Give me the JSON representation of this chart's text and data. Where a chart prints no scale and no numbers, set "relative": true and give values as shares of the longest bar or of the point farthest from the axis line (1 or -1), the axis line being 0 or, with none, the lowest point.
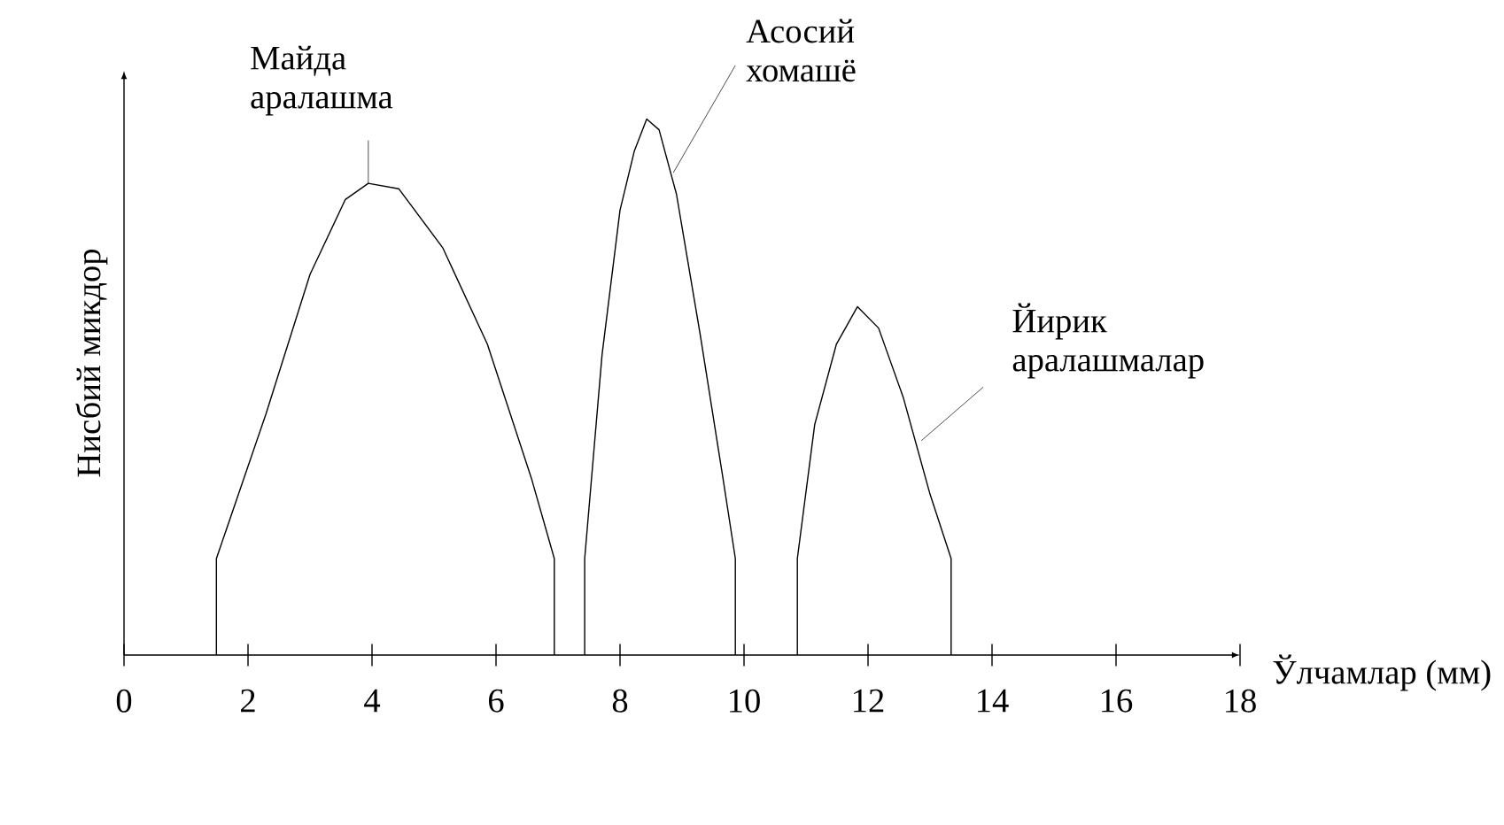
{
  "chart_data": {
    "type": "line",
    "relative": true,
    "xlabel": "Ўлчамлар (мм)",
    "ylabel": "Нисбий микдор",
    "xlim": [
      0,
      18
    ],
    "xticks": [
      0,
      2,
      4,
      6,
      8,
      10,
      12,
      14,
      16,
      18
    ],
    "grid": false,
    "marker": "none",
    "line_style": "solid",
    "series": [
      {
        "color": "#000000",
        "x": [
          1.49,
          1.49,
          2.29,
          3.0,
          3.57,
          3.94,
          4.43,
          5.14,
          5.86,
          6.57,
          6.94,
          6.94
        ],
        "values": [
          0,
          0.18,
          0.45,
          0.71,
          0.85,
          0.88,
          0.87,
          0.76,
          0.58,
          0.33,
          0.18,
          0
        ]
      },
      {
        "color": "#000000",
        "x": [
          7.43,
          7.43,
          7.71,
          8.0,
          8.23,
          8.43,
          8.63,
          8.91,
          9.29,
          9.66,
          9.86,
          9.86
        ],
        "values": [
          0,
          0.18,
          0.56,
          0.83,
          0.94,
          1,
          0.98,
          0.86,
          0.6,
          0.33,
          0.18,
          0
        ]
      },
      {
        "color": "#000000",
        "x": [
          10.86,
          10.86,
          11.14,
          11.49,
          11.83,
          12.17,
          12.57,
          13.0,
          13.34,
          13.34
        ],
        "values": [
          0,
          0.18,
          0.43,
          0.58,
          0.65,
          0.61,
          0.48,
          0.3,
          0.18,
          0
        ]
      }
    ],
    "annotations": [
      {
        "text": "Майда аралашма",
        "x": 3.94,
        "y": 0.88
      },
      {
        "text": "Асосий хомашё",
        "x": 8.86,
        "y": 0.9
      },
      {
        "text": "Йирик аралашмалар",
        "x": 12.86,
        "y": 0.4
      }
    ]
  }
}
